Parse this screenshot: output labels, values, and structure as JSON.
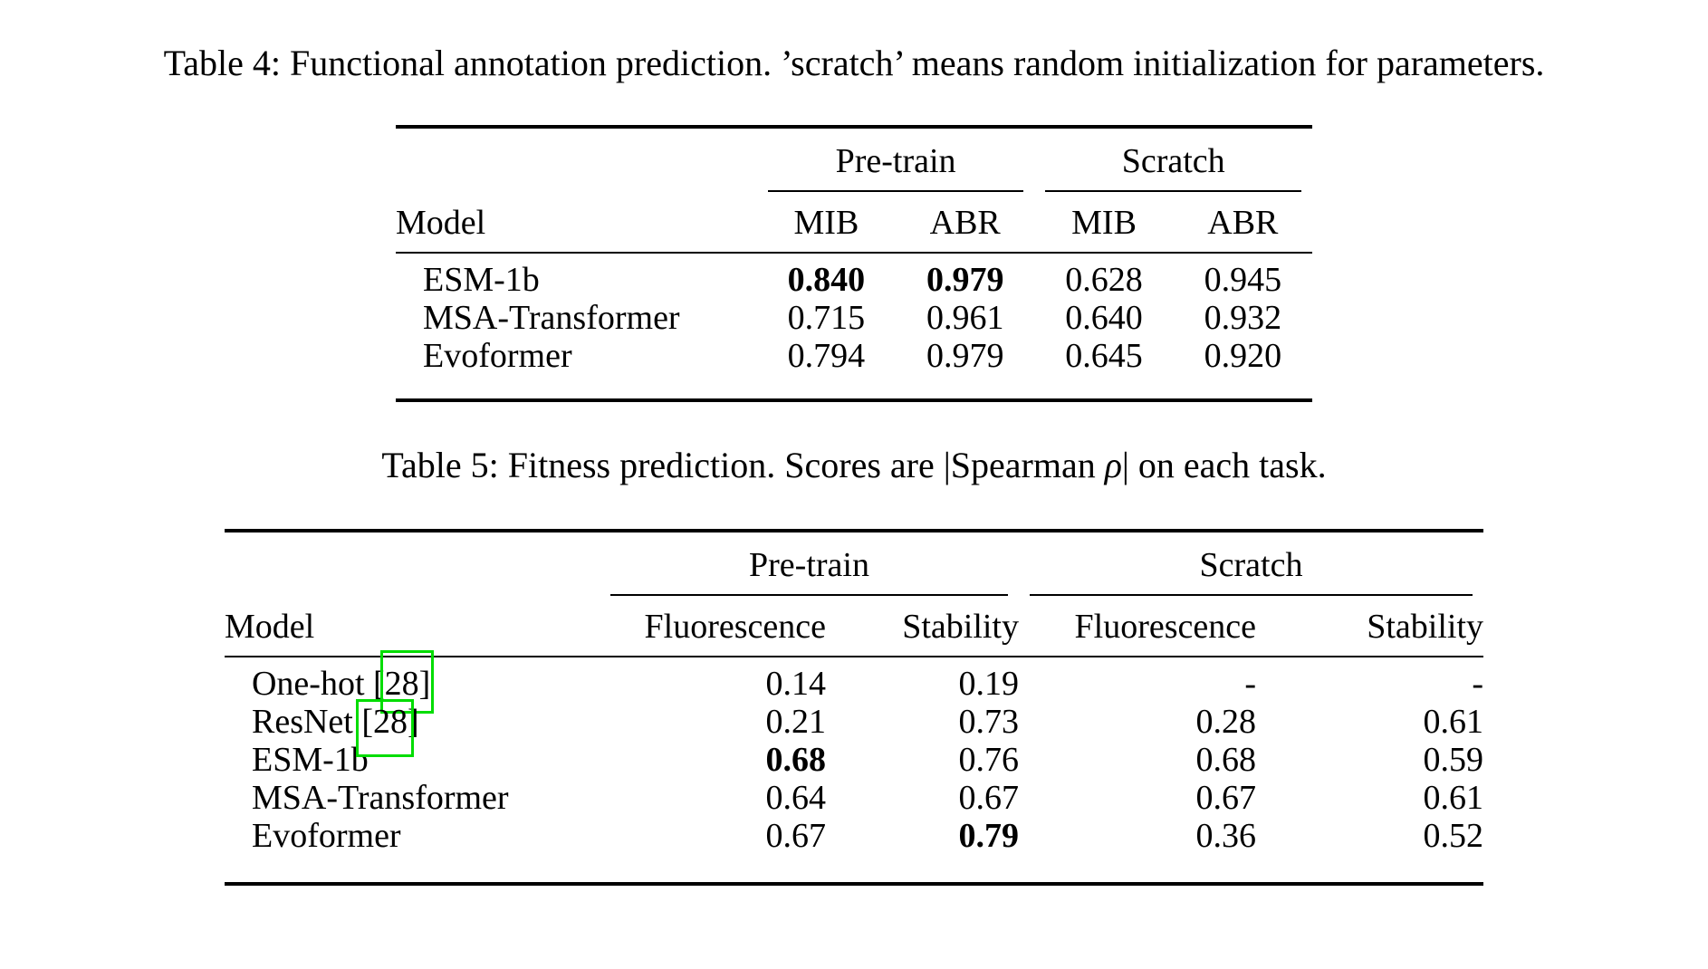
{
  "colors": {
    "citation-border": "#00dd00",
    "text": "#000000",
    "background": "#ffffff"
  },
  "table4": {
    "caption": "Table 4: Functional annotation prediction. ’scratch’ means random initialization for parameters.",
    "group_headers": {
      "pretrain": "Pre-train",
      "scratch": "Scratch"
    },
    "col_headers": {
      "model": "Model",
      "pretrain_mib": "MIB",
      "pretrain_abr": "ABR",
      "scratch_mib": "MIB",
      "scratch_abr": "ABR"
    },
    "rows": [
      {
        "model": "ESM-1b",
        "values": [
          "0.840",
          "0.979",
          "0.628",
          "0.945"
        ]
      },
      {
        "model": "MSA-Transformer",
        "values": [
          "0.715",
          "0.961",
          "0.640",
          "0.932"
        ]
      },
      {
        "model": "Evoformer",
        "values": [
          "0.794",
          "0.979",
          "0.645",
          "0.920"
        ]
      }
    ]
  },
  "table5": {
    "caption_prefix": "Table 5: Fitness prediction. Scores are |Spearman ",
    "caption_rho": "ρ",
    "caption_suffix": "| on each task.",
    "group_headers": {
      "pretrain": "Pre-train",
      "scratch": "Scratch"
    },
    "col_headers": {
      "model": "Model",
      "pretrain_fluorescence": "Fluorescence",
      "pretrain_stability": "Stability",
      "scratch_fluorescence": "Fluorescence",
      "scratch_stability": "Stability"
    },
    "rows": [
      {
        "model": "One-hot ",
        "cite": "[28]",
        "values": [
          "0.14",
          "0.19",
          "-",
          "-"
        ]
      },
      {
        "model": "ResNet ",
        "cite": "[28]",
        "values": [
          "0.21",
          "0.73",
          "0.28",
          "0.61"
        ]
      },
      {
        "model": "ESM-1b",
        "cite": "",
        "values": [
          "0.68",
          "0.76",
          "0.68",
          "0.59"
        ]
      },
      {
        "model": "MSA-Transformer",
        "cite": "",
        "values": [
          "0.64",
          "0.67",
          "0.67",
          "0.61"
        ]
      },
      {
        "model": "Evoformer",
        "cite": "",
        "values": [
          "0.67",
          "0.79",
          "0.36",
          "0.52"
        ]
      }
    ]
  }
}
